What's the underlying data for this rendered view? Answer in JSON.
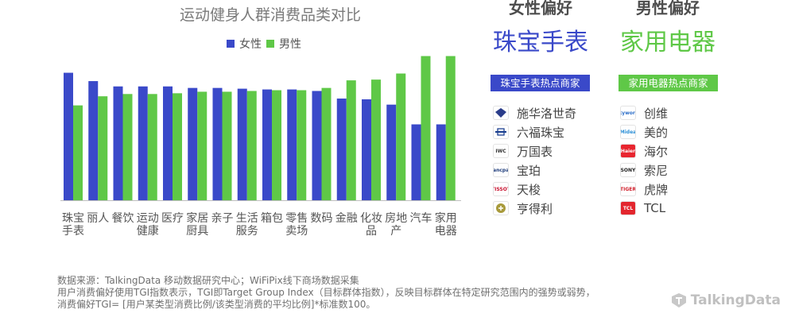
{
  "chart_data": {
    "type": "bar",
    "title": "运动健身人群消费品类对比",
    "categories": [
      "珠宝手表",
      "丽人",
      "餐饮",
      "运动健康",
      "医疗",
      "家居厨具",
      "亲子",
      "生活服务",
      "箱包",
      "零售卖场",
      "数码",
      "金融",
      "化妆品",
      "房地产",
      "汽车",
      "家用电器"
    ],
    "series": [
      {
        "name": "女性",
        "color": "#3a49c9",
        "values": [
          168,
          157,
          150,
          150,
          150,
          148,
          148,
          147,
          146,
          146,
          144,
          134,
          133,
          126,
          100,
          100
        ]
      },
      {
        "name": "男性",
        "color": "#5fc847",
        "values": [
          125,
          137,
          140,
          140,
          141,
          143,
          143,
          144,
          145,
          145,
          148,
          158,
          159,
          167,
          190,
          190
        ]
      }
    ],
    "ylim": [
      0,
      200
    ],
    "grid": false,
    "legend": "top-center"
  },
  "female": {
    "header": "女性偏好",
    "category": "珠宝手表",
    "tag": "珠宝手表热点商家",
    "color": "#3a49c9",
    "brands": [
      {
        "name": "施华洛世奇",
        "icon": "swarovski-logo"
      },
      {
        "name": "六福珠宝",
        "icon": "lukfook-logo"
      },
      {
        "name": "万国表",
        "icon": "iwc-logo",
        "logo_text": "IWC"
      },
      {
        "name": "宝珀",
        "icon": "blancpain-logo",
        "logo_text": "Blancpain"
      },
      {
        "name": "天梭",
        "icon": "tissot-logo",
        "logo_text": "TISSOT"
      },
      {
        "name": "亨得利",
        "icon": "hengdeli-logo"
      }
    ]
  },
  "male": {
    "header": "男性偏好",
    "category": "家用电器",
    "tag": "家用电器热点商家",
    "color": "#5fc847",
    "brands": [
      {
        "name": "创维",
        "icon": "skyworth-logo",
        "logo_text": "Skyworth"
      },
      {
        "name": "美的",
        "icon": "midea-logo",
        "logo_text": "Midea"
      },
      {
        "name": "海尔",
        "icon": "haier-logo",
        "logo_text": "Haier"
      },
      {
        "name": "索尼",
        "icon": "sony-logo",
        "logo_text": "SONY"
      },
      {
        "name": "虎牌",
        "icon": "tiger-logo",
        "logo_text": "TIGER"
      },
      {
        "name": "TCL",
        "icon": "tcl-logo",
        "logo_text": "TCL"
      }
    ]
  },
  "notes": [
    "数据来源：TalkingData 移动数据研究中心；WiFiPix线下商场数据采集",
    "用户消费偏好使用TGI指数表示，TGI即Target Group Index（目标群体指数），反映目标群体在特定研究范围内的强势或弱势，",
    "消费偏好TGI= [用户某类型消费比例/该类型消费的平均比例]*标准数100。"
  ],
  "watermark": "TalkingData"
}
